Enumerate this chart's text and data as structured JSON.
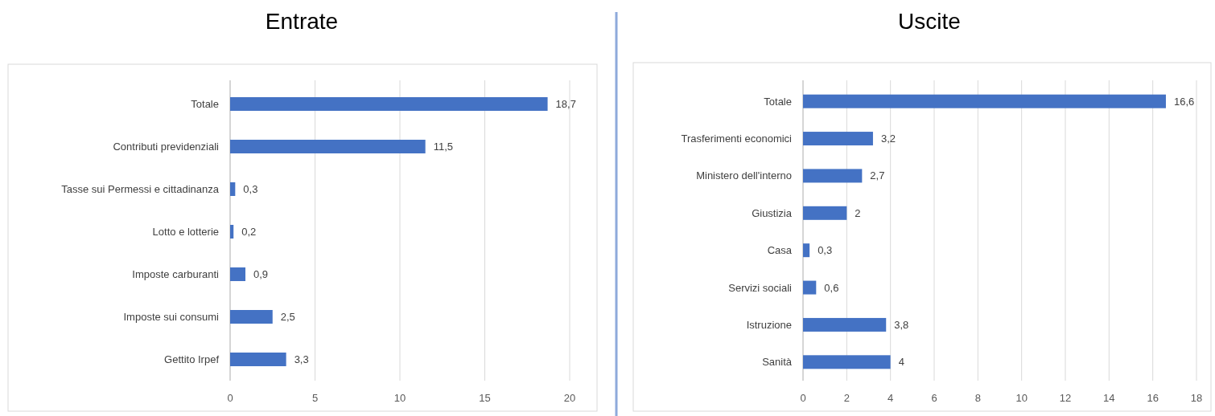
{
  "chart_data": [
    {
      "type": "bar",
      "title": "Entrate",
      "orientation": "horizontal",
      "categories": [
        "Totale",
        "Contributi previdenziali",
        "Tasse sui Permessi e cittadinanza",
        "Lotto e lotterie",
        "Imposte carburanti",
        "Imposte sui consumi",
        "Gettito Irpef"
      ],
      "values": [
        18.7,
        11.5,
        0.3,
        0.2,
        0.9,
        2.5,
        3.3
      ],
      "value_labels": [
        "18,7",
        "11,5",
        "0,3",
        "0,2",
        "0,9",
        "2,5",
        "3,3"
      ],
      "color": "#4472c4",
      "xlim": [
        0,
        20
      ],
      "xticks": [
        0,
        5,
        10,
        15,
        20
      ],
      "grid": "x"
    },
    {
      "type": "bar",
      "title": "Uscite",
      "orientation": "horizontal",
      "categories": [
        "Totale",
        "Trasferimenti economici",
        "Ministero dell'interno",
        "Giustizia",
        "Casa",
        "Servizi sociali",
        "Istruzione",
        "Sanità"
      ],
      "values": [
        16.6,
        3.2,
        2.7,
        2,
        0.3,
        0.6,
        3.8,
        4
      ],
      "value_labels": [
        "16,6",
        "3,2",
        "2,7",
        "2",
        "0,3",
        "0,6",
        "3,8",
        "4"
      ],
      "color": "#4472c4",
      "xlim": [
        0,
        18
      ],
      "xticks": [
        0,
        2,
        4,
        6,
        8,
        10,
        12,
        14,
        16,
        18
      ],
      "grid": "x"
    }
  ]
}
